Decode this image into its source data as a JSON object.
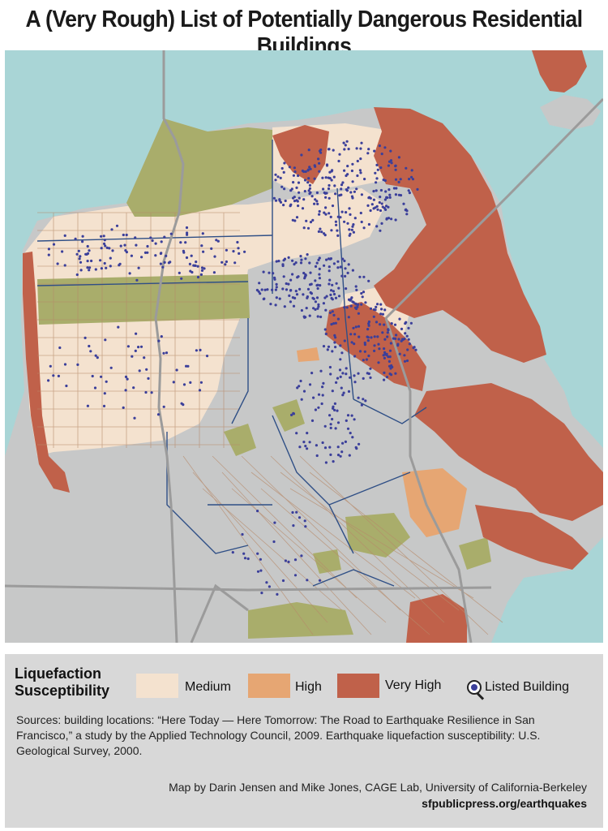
{
  "title": "A (Very Rough) List of Potentially Dangerous Residential Buildings",
  "colors": {
    "water": "#a9d5d6",
    "land": "#c7c8c8",
    "medium": "#f4e2cf",
    "high": "#e6a673",
    "very_high": "#c0614a",
    "park": "#a9ad6b",
    "building_dot": "#3b3f9a",
    "district_line": "#2f4f86",
    "street_line": "#b78a6a",
    "highway": "#9b9b9b"
  },
  "legend": {
    "heading_line1": "Liquefaction",
    "heading_line2": "Susceptibility",
    "items": [
      {
        "label": "Medium",
        "color": "#f4e2cf"
      },
      {
        "label": "High",
        "color": "#e6a673"
      },
      {
        "label": "Very High",
        "color": "#c0614a"
      }
    ],
    "listed_building": {
      "label": "Listed Building",
      "icon": "magnifier-pin-icon"
    }
  },
  "sources": "Sources:  building locations: “Here Today — Here Tomorrow: The Road to Earthquake Resilience in San Francisco,” a study by the Applied Technology Council, 2009. Earthquake liquefaction susceptibility: U.S. Geological Survey, 2000.",
  "credit": "Map by Darin Jensen and Mike Jones, CAGE Lab, University of California-Berkeley",
  "url": "sfpublicpress.org/earthquakes"
}
